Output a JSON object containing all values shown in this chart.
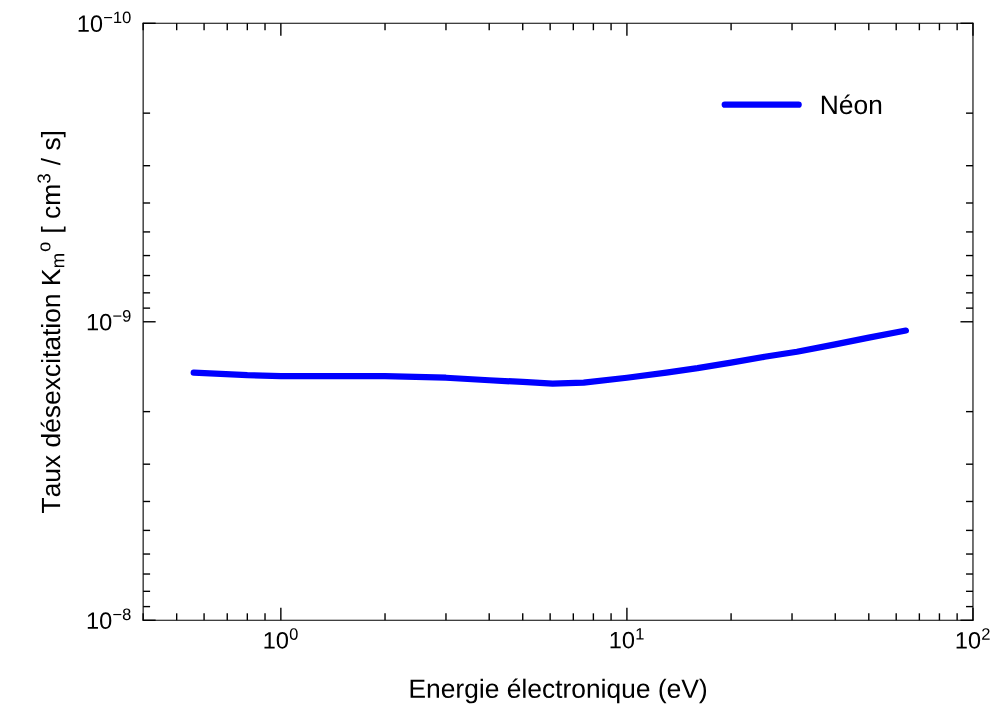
{
  "chart_data": {
    "type": "line",
    "xlabel": "Energie électronique (eV)",
    "ylabel": "Taux désexcitation K$_{m}$$^{o}$ [ cm$^{3}$ / s]",
    "log": "xy",
    "xlim": [
      0.4,
      100
    ],
    "ylim": [
      1e-08,
      1e-10
    ],
    "xticks": [
      {
        "value": 1,
        "label": "10$^{0}$"
      },
      {
        "value": 10,
        "label": "10$^{1}$"
      },
      {
        "value": 100,
        "label": "10$^{2}$"
      }
    ],
    "yticks": [
      {
        "value": 1e-10,
        "label": "10$^{−10}$"
      },
      {
        "value": 1e-09,
        "label": "10$^{−9}$"
      },
      {
        "value": 1e-08,
        "label": "10$^{−8}$"
      }
    ],
    "legend": "top right",
    "grid": false,
    "marker": "none",
    "line_style": "solid",
    "series": [
      {
        "name": "Néon",
        "color": "#0000ff",
        "x": [
          0.56,
          0.8,
          1.0,
          1.5,
          2.0,
          3.0,
          4.0,
          5.0,
          6.1,
          7.5,
          10,
          13,
          16,
          20,
          25,
          31,
          40,
          50,
          64
        ],
        "values": [
          1.48e-09,
          1.51e-09,
          1.52e-09,
          1.52e-09,
          1.52e-09,
          1.54e-09,
          1.57e-09,
          1.59e-09,
          1.61e-09,
          1.6e-09,
          1.54e-09,
          1.48e-09,
          1.43e-09,
          1.37e-09,
          1.31e-09,
          1.26e-09,
          1.19e-09,
          1.13e-09,
          1.07e-09
        ]
      }
    ]
  }
}
